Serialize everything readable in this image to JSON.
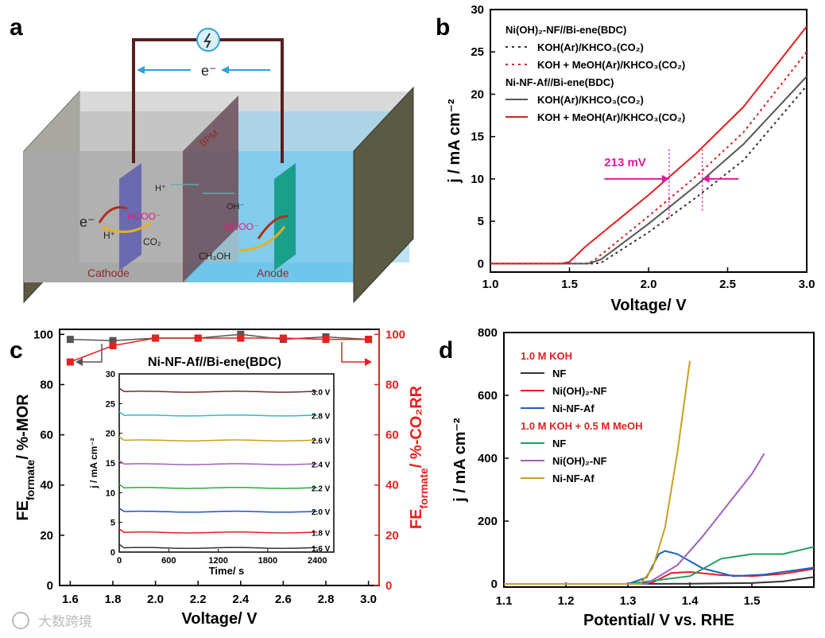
{
  "panels": {
    "a": {
      "letter": "a",
      "electron_top": "e⁻",
      "membrane": "BPM",
      "h_plus": "H⁺",
      "oh_minus": "OH⁻",
      "hcoo_left": "HCOO⁻",
      "hcoo_right": "HCOO⁻",
      "e_cathode": "e⁻",
      "h_cathode": "H⁺",
      "co2": "CO₂",
      "ch3oh": "CH₃OH",
      "cathode": "Cathode",
      "anode": "Anode",
      "colors": {
        "wire": "#5a1f1f",
        "arrow": "#2ea0d8",
        "hcoo": "#e6197a",
        "cathode": "#6a6ab0",
        "anode": "#1aa08a"
      }
    },
    "b": {
      "letter": "b",
      "annotation": "213 mV",
      "annotation_color": "#e01aa0"
    },
    "c": {
      "letter": "c"
    },
    "d": {
      "letter": "d"
    }
  },
  "watermark": "大数跨境",
  "chart_data": [
    {
      "panel": "b",
      "type": "line",
      "xlabel": "Voltage/ V",
      "ylabel": "j / mA cm⁻²",
      "xlim": [
        1.0,
        3.0
      ],
      "ylim": [
        -1,
        30
      ],
      "xticks": [
        "1.0",
        "1.5",
        "2.0",
        "2.5",
        "3.0"
      ],
      "yticks": [
        "0",
        "5",
        "10",
        "15",
        "20",
        "25",
        "30"
      ],
      "legend_groups": [
        "Ni(OH)₂-NF//Bi-ene(BDC)",
        "Ni-NF-Af//Bi-ene(BDC)"
      ],
      "series": [
        {
          "name": "KOH(Ar)/KHCO₃(CO₂)",
          "group": 0,
          "color": "#333333",
          "dash": true,
          "x": [
            1.0,
            1.5,
            1.65,
            1.7,
            2.0,
            2.3,
            2.6,
            3.0
          ],
          "y": [
            0,
            0,
            0,
            0.1,
            3.7,
            7.8,
            12.2,
            21.0
          ]
        },
        {
          "name": "KOH + MeOH(Ar)/KHCO₃(CO₂)",
          "group": 0,
          "color": "#e02020",
          "dash": true,
          "x": [
            1.0,
            1.5,
            1.6,
            1.65,
            2.0,
            2.3,
            2.6,
            3.0
          ],
          "y": [
            0,
            0,
            0,
            0.3,
            5.6,
            10.3,
            15.5,
            25.0
          ]
        },
        {
          "name": "KOH(Ar)/KHCO₃(CO₂)",
          "group": 1,
          "color": "#555555",
          "dash": false,
          "x": [
            1.0,
            1.55,
            1.62,
            1.7,
            2.0,
            2.3,
            2.6,
            3.0
          ],
          "y": [
            0,
            0,
            0,
            0.5,
            4.7,
            9.2,
            14.1,
            22.1
          ]
        },
        {
          "name": "KOH + MeOH(Ar)/KHCO₃(CO₂)",
          "group": 1,
          "color": "#e02020",
          "dash": false,
          "x": [
            1.0,
            1.45,
            1.5,
            1.6,
            2.0,
            2.3,
            2.6,
            3.0
          ],
          "y": [
            0,
            0,
            0.2,
            2.0,
            8.1,
            13.0,
            18.5,
            28.0
          ]
        }
      ]
    },
    {
      "panel": "c",
      "type": "line",
      "title": "Ni-NF-Af//Bi-ene(BDC)",
      "xlabel": "Voltage/ V",
      "ylabel_left": "FE",
      "ylabel_left_sub": "formate",
      "ylabel_left_rest": "/ %-MOR",
      "ylabel_right": "FE",
      "ylabel_right_sub": "formate",
      "ylabel_right_rest": "/ %-CO₂RR",
      "xlim": [
        1.55,
        3.05
      ],
      "ylim": [
        0,
        100
      ],
      "xticks": [
        "1.6",
        "1.8",
        "2.0",
        "2.2",
        "2.4",
        "2.6",
        "2.8",
        "3.0"
      ],
      "yticks": [
        "0",
        "20",
        "40",
        "60",
        "80",
        "100"
      ],
      "series": [
        {
          "name": "FE formate MOR",
          "color": "#555555",
          "axis": "left",
          "x": [
            1.6,
            1.8,
            2.0,
            2.2,
            2.4,
            2.6,
            2.8,
            3.0
          ],
          "y": [
            98,
            97.5,
            98.5,
            98.5,
            100,
            98,
            99,
            98
          ]
        },
        {
          "name": "FE formate CO2RR",
          "color": "#e82020",
          "axis": "right",
          "x": [
            1.6,
            1.8,
            2.0,
            2.2,
            2.4,
            2.6,
            2.8,
            3.0
          ],
          "y": [
            89,
            95.5,
            98.5,
            98.5,
            98.5,
            98.5,
            98,
            98
          ]
        }
      ],
      "inset": {
        "xlabel": "Time/ s",
        "ylabel": "j / mA cm⁻²",
        "xlim": [
          0,
          2600
        ],
        "ylim": [
          0,
          30
        ],
        "xticks": [
          "0",
          "600",
          "1200",
          "1800",
          "2400"
        ],
        "yticks": [
          "0",
          "5",
          "10",
          "15",
          "20",
          "25",
          "30"
        ],
        "series": [
          {
            "name": "3.0 V",
            "color": "#6b2e2e",
            "value": 27.0
          },
          {
            "name": "2.8 V",
            "color": "#2bbcc8",
            "value": 23.0
          },
          {
            "name": "2.6 V",
            "color": "#c8a020",
            "value": 18.8
          },
          {
            "name": "2.4 V",
            "color": "#a060c0",
            "value": 14.8
          },
          {
            "name": "2.2 V",
            "color": "#20b040",
            "value": 10.8
          },
          {
            "name": "2.0 V",
            "color": "#2050c0",
            "value": 6.8
          },
          {
            "name": "1.8 V",
            "color": "#e02020",
            "value": 3.3
          },
          {
            "name": "1.6 V",
            "color": "#333333",
            "value": 0.7
          }
        ]
      }
    },
    {
      "panel": "d",
      "type": "line",
      "xlabel": "Potential/ V vs. RHE",
      "ylabel": "j / mA cm⁻²",
      "xlim": [
        1.1,
        1.6
      ],
      "ylim": [
        -10,
        800
      ],
      "xticks": [
        "1.1",
        "1.2",
        "1.3",
        "1.4",
        "1.5"
      ],
      "yticks": [
        "0",
        "200",
        "400",
        "600",
        "800"
      ],
      "legend_headers": [
        "1.0 M KOH",
        "1.0 M KOH + 0.5 M MeOH"
      ],
      "series": [
        {
          "name": "NF",
          "group": 0,
          "color": "#333333",
          "x": [
            1.1,
            1.3,
            1.4,
            1.5,
            1.55,
            1.6
          ],
          "y": [
            0,
            0,
            1,
            3,
            8,
            22
          ]
        },
        {
          "name": "Ni(OH)₂-NF",
          "group": 0,
          "color": "#e02020",
          "x": [
            1.1,
            1.3,
            1.34,
            1.37,
            1.4,
            1.45,
            1.5,
            1.55,
            1.6
          ],
          "y": [
            0,
            0,
            5,
            35,
            38,
            28,
            25,
            32,
            48
          ]
        },
        {
          "name": "Ni-NF-Af",
          "group": 0,
          "color": "#2060c0",
          "x": [
            1.1,
            1.3,
            1.33,
            1.35,
            1.36,
            1.38,
            1.42,
            1.47,
            1.52,
            1.6
          ],
          "y": [
            0,
            0,
            20,
            95,
            105,
            95,
            50,
            25,
            30,
            52
          ]
        },
        {
          "name": "NF",
          "group": 1,
          "color": "#20a060",
          "x": [
            1.1,
            1.3,
            1.4,
            1.45,
            1.5,
            1.55,
            1.6
          ],
          "y": [
            0,
            0,
            25,
            80,
            95,
            95,
            118
          ]
        },
        {
          "name": "Ni(OH)₂-NF",
          "group": 1,
          "color": "#a060c0",
          "x": [
            1.1,
            1.33,
            1.38,
            1.42,
            1.46,
            1.5,
            1.52
          ],
          "y": [
            0,
            0,
            60,
            150,
            250,
            350,
            415
          ]
        },
        {
          "name": "Ni-NF-Af",
          "group": 1,
          "color": "#c8a020",
          "x": [
            1.1,
            1.32,
            1.34,
            1.36,
            1.38,
            1.4
          ],
          "y": [
            0,
            0,
            50,
            180,
            420,
            710
          ]
        }
      ]
    }
  ]
}
